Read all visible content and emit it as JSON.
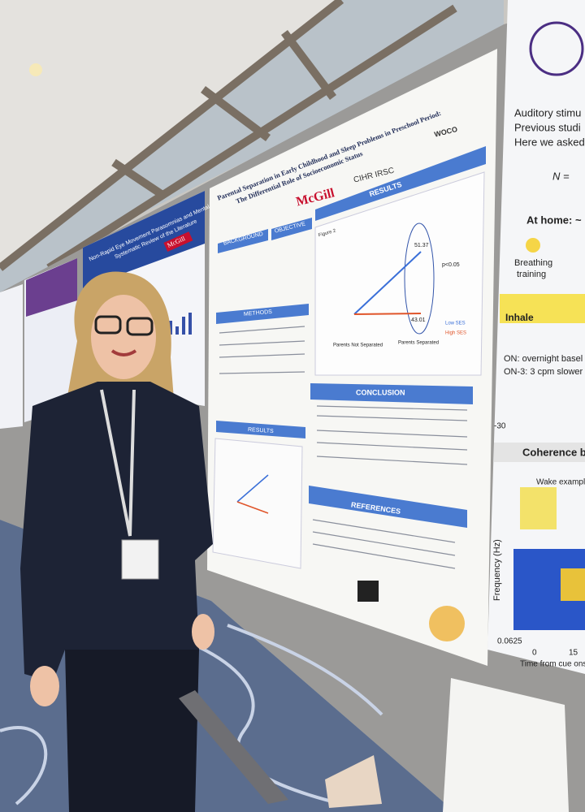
{
  "posters": {
    "center": {
      "title_lines": [
        "Parental Separation in Early Childhood and Sleep Problems in Preschool Period:",
        "The Differential Role of Socioeconomic Status"
      ],
      "institution": "McGill",
      "logos": [
        "CIHR IRSC",
        "WOCO"
      ],
      "sections": {
        "background": "BACKGROUND",
        "objective": "OBJECTIVE",
        "methods": "METHODS",
        "results": "RESULTS",
        "results_small": "RESULTS",
        "conclusion": "CONCLUSION",
        "references": "REFERENCES"
      },
      "figure": {
        "caption": "Figure 2",
        "high_value": "51.37",
        "low_value": "43.01",
        "significance": "p<0.05",
        "legend": [
          "Low SES",
          "High SES"
        ],
        "categories": [
          "Parents Not Separated",
          "Parents Separated"
        ]
      }
    },
    "left": {
      "title": "Non-Rapid Eye Movement Parasomnias and Mental Health in Childhood:",
      "subtitle": "Systematic Review of the Literature",
      "institution": "McGill"
    },
    "right": {
      "intro": [
        "Auditory stimu",
        "Previous studi",
        "Here we asked"
      ],
      "n": "N =",
      "home": "At home: ~",
      "breathing": [
        "Breathing",
        "training"
      ],
      "inhale": "Inhale",
      "on": "ON: overnight basel",
      "on3": "ON-3: 3 cpm slower",
      "axis_min": "-30",
      "coherence": "Coherence be",
      "wake": "Wake example",
      "ylabel": "Frequency (Hz)",
      "ytick": "0.0625",
      "xticks": [
        "0",
        "15"
      ],
      "xlabel": "Time from cue onset"
    }
  }
}
